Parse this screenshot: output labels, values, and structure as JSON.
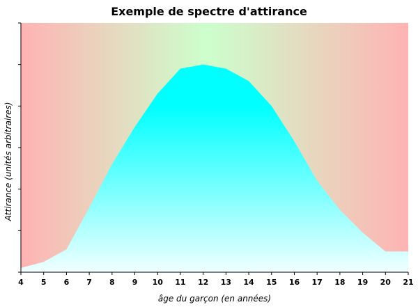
{
  "chart_data": {
    "type": "area",
    "title": "Exemple de spectre d'attirance",
    "xlabel": "âge du garçon (en années)",
    "ylabel": "Attirance (unités arbitraires)",
    "xlim": [
      4,
      21
    ],
    "ylim": [
      0,
      6
    ],
    "x_ticks": [
      "4",
      "5",
      "6",
      "7",
      "8",
      "9",
      "10",
      "11",
      "12",
      "13",
      "14",
      "15",
      "16",
      "17",
      "18",
      "19",
      "20",
      "21"
    ],
    "y_tick_count": 6,
    "y_tick_labels_shown": false,
    "grid": false,
    "background": "horizontal gradient: red at the ages, green at the peak",
    "series": [
      {
        "x": [
          4,
          5,
          6,
          7,
          8,
          9,
          10,
          11,
          12,
          13,
          14,
          15,
          16,
          17,
          18,
          19,
          20,
          21
        ],
        "values": [
          0.1,
          0.25,
          0.55,
          1.55,
          2.6,
          3.5,
          4.3,
          4.9,
          5.0,
          4.9,
          4.6,
          4.0,
          3.15,
          2.2,
          1.5,
          0.95,
          0.5,
          0.5
        ]
      }
    ],
    "colors": {
      "area_top": "#00ffff",
      "area_bottom": "#f0ffff",
      "bg_edge": "#ffb3b3",
      "bg_center": "#ccffcc",
      "frame": "#000000"
    }
  }
}
